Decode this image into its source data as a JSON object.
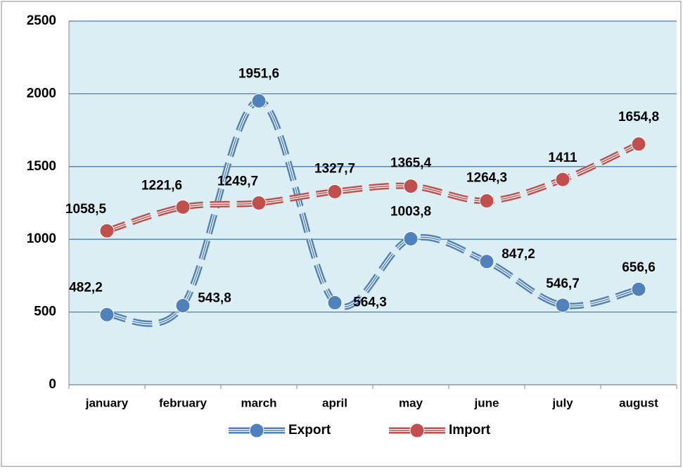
{
  "chart_data": {
    "type": "line",
    "categories": [
      "january",
      "february",
      "march",
      "april",
      "may",
      "june",
      "july",
      "august"
    ],
    "series": [
      {
        "name": "Export",
        "color": "#4f81bd",
        "values": [
          482.2,
          543.8,
          1951.6,
          564.3,
          1003.8,
          847.2,
          546.7,
          656.6
        ],
        "value_labels": [
          "482,2",
          "543,8",
          "1951,6",
          "564,3",
          "1003,8",
          "847,2",
          "546,7",
          "656,6"
        ]
      },
      {
        "name": "Import",
        "color": "#c0504d",
        "values": [
          1058.5,
          1221.6,
          1249.7,
          1327.7,
          1365.4,
          1264.3,
          1411,
          1654.8
        ],
        "value_labels": [
          "1058,5",
          "1221,6",
          "1249,7",
          "1327,7",
          "1365,4",
          "1264,3",
          "1411",
          "1654,8"
        ]
      }
    ],
    "ylim": [
      0,
      2500
    ],
    "yticks": [
      0,
      500,
      1000,
      1500,
      2000,
      2500
    ],
    "grid": true,
    "smooth": true,
    "legend": "bottom"
  }
}
